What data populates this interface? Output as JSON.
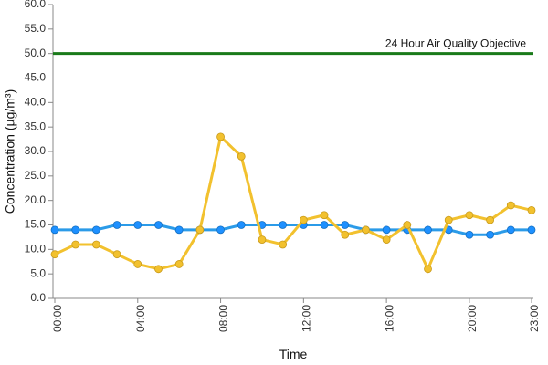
{
  "chart_data": {
    "type": "line",
    "xlabel": "Time",
    "ylabel": "Concentration (µg/m³)",
    "ylim": [
      0,
      60
    ],
    "y_ticks": [
      "0.0",
      "5.0",
      "10.0",
      "15.0",
      "20.0",
      "25.0",
      "30.0",
      "35.0",
      "40.0",
      "45.0",
      "50.0",
      "55.0",
      "60.0"
    ],
    "x_range": [
      0,
      23
    ],
    "x_ticks": [
      {
        "hour": 0,
        "label": "00:00"
      },
      {
        "hour": 4,
        "label": "04:00"
      },
      {
        "hour": 8,
        "label": "08:00"
      },
      {
        "hour": 12,
        "label": "12:00"
      },
      {
        "hour": 16,
        "label": "16:00"
      },
      {
        "hour": 20,
        "label": "20:00"
      },
      {
        "hour": 23,
        "label": "23:00"
      }
    ],
    "x": [
      0,
      1,
      2,
      3,
      4,
      5,
      6,
      7,
      8,
      9,
      10,
      11,
      12,
      13,
      14,
      15,
      16,
      17,
      18,
      19,
      20,
      21,
      22,
      23
    ],
    "series": [
      {
        "color": "#2b9be8",
        "marker_color": "#1e90ff",
        "values": [
          14,
          14,
          14,
          15,
          15,
          15,
          14,
          14,
          14,
          15,
          15,
          15,
          15,
          15,
          15,
          14,
          14,
          14,
          14,
          14,
          13,
          13,
          14,
          14
        ]
      },
      {
        "color": "#f2c12e",
        "marker_color": "#f2c12e",
        "values": [
          9,
          11,
          11,
          9,
          7,
          6,
          7,
          14,
          33,
          29,
          12,
          11,
          16,
          17,
          13,
          14,
          12,
          15,
          6,
          16,
          17,
          16,
          19,
          18
        ]
      }
    ],
    "objective": {
      "value": 50,
      "label": "24 Hour Air Quality Objective",
      "color": "#1a7a1a"
    },
    "grid": false,
    "legend": "none"
  }
}
